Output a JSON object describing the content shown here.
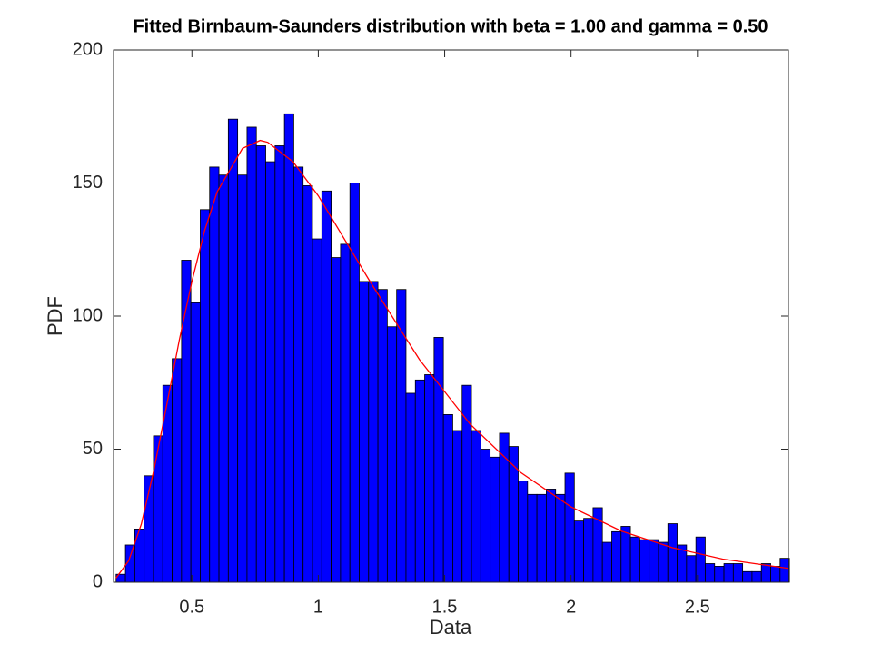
{
  "chart_data": {
    "type": "histogram",
    "title": "Fitted Birnbaum-Saunders distribution with beta = 1.00 and gamma = 0.50",
    "xlabel": "Data",
    "ylabel": "PDF",
    "bins": [
      0.2,
      0.237,
      0.274,
      0.311,
      0.348,
      0.385,
      0.422,
      0.459,
      0.496,
      0.533,
      0.57,
      0.607,
      0.644,
      0.681,
      0.718,
      0.755,
      0.792,
      0.829,
      0.866,
      0.903,
      0.94,
      0.977,
      1.014,
      1.051,
      1.088,
      1.125,
      1.162,
      1.199,
      1.236,
      1.273,
      1.31,
      1.347,
      1.384,
      1.421,
      1.458,
      1.495,
      1.532,
      1.569,
      1.606,
      1.643,
      1.68,
      1.717,
      1.754,
      1.791,
      1.828,
      1.865,
      1.902,
      1.939,
      1.976,
      2.013,
      2.05,
      2.087,
      2.124,
      2.161,
      2.198,
      2.235,
      2.272,
      2.309,
      2.346,
      2.383,
      2.42,
      2.457,
      2.494,
      2.531,
      2.568,
      2.605,
      2.642,
      2.679,
      2.716,
      2.753,
      2.79,
      2.827,
      2.864
    ],
    "counts": [
      3,
      14,
      20,
      40,
      55,
      74,
      84,
      121,
      105,
      140,
      156,
      153,
      174,
      153,
      171,
      164,
      158,
      164,
      176,
      156,
      149,
      129,
      147,
      122,
      127,
      150,
      113,
      113,
      110,
      96,
      110,
      71,
      76,
      78,
      92,
      63,
      57,
      74,
      57,
      50,
      47,
      56,
      51,
      38,
      33,
      33,
      35,
      33,
      41,
      23,
      24,
      28,
      15,
      19,
      21,
      17,
      16,
      16,
      15,
      22,
      14,
      10,
      17,
      7,
      6,
      7,
      7,
      4,
      4,
      7,
      6,
      9
    ],
    "color": "#0000ff",
    "curve": {
      "color": "#ff0000",
      "x": [
        0.2,
        0.25,
        0.3,
        0.35,
        0.4,
        0.45,
        0.5,
        0.55,
        0.6,
        0.7,
        0.77,
        0.8,
        0.9,
        1.0,
        1.2,
        1.4,
        1.6,
        1.8,
        2.0,
        2.2,
        2.4,
        2.6,
        2.86
      ],
      "values": [
        1.6,
        8.1,
        21.9,
        42.3,
        66.4,
        90.9,
        113,
        132,
        146.7,
        163,
        166,
        165.3,
        158,
        145.2,
        113.7,
        83.7,
        59.5,
        41.3,
        28.3,
        19.2,
        13,
        8.7,
        5.2
      ]
    },
    "xlim": [
      0.19,
      2.86
    ],
    "ylim": [
      0,
      200
    ],
    "xticks": [
      0.5,
      1,
      1.5,
      2,
      2.5
    ],
    "yticks": [
      0,
      50,
      100,
      150,
      200
    ]
  }
}
